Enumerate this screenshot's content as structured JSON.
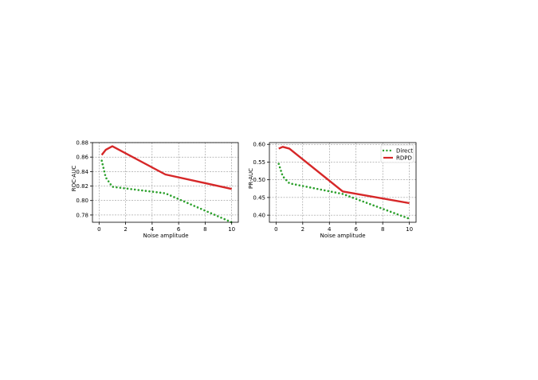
{
  "chart_data": [
    {
      "type": "line",
      "title": "",
      "xlabel": "Noise amplitude",
      "ylabel": "ROC-AUC",
      "xlim": [
        -0.5,
        10.5
      ],
      "ylim": [
        0.77,
        0.88
      ],
      "xticks": [
        0,
        2,
        4,
        6,
        8,
        10
      ],
      "yticks": [
        0.78,
        0.8,
        0.82,
        0.84,
        0.86,
        0.88
      ],
      "xtick_labels": [
        "0",
        "2",
        "4",
        "6",
        "8",
        "10"
      ],
      "ytick_labels": [
        "0.78",
        "0.80",
        "0.82",
        "0.84",
        "0.86",
        "0.88"
      ],
      "grid": true,
      "legend": null,
      "series": [
        {
          "name": "Direct",
          "color": "#2ca02c",
          "style": "dotted",
          "x": [
            0.2,
            0.5,
            1,
            5,
            10
          ],
          "y": [
            0.855,
            0.832,
            0.819,
            0.81,
            0.77
          ]
        },
        {
          "name": "RDPD",
          "color": "#d62728",
          "style": "solid",
          "x": [
            0.2,
            0.5,
            1,
            5,
            10
          ],
          "y": [
            0.863,
            0.87,
            0.875,
            0.836,
            0.816
          ]
        }
      ]
    },
    {
      "type": "line",
      "title": "",
      "xlabel": "Noise amplitude",
      "ylabel": "PR-AUC",
      "xlim": [
        -0.5,
        10.5
      ],
      "ylim": [
        0.38,
        0.605
      ],
      "xticks": [
        0,
        2,
        4,
        6,
        8,
        10
      ],
      "yticks": [
        0.4,
        0.45,
        0.5,
        0.55,
        0.6
      ],
      "xtick_labels": [
        "0",
        "2",
        "4",
        "6",
        "8",
        "10"
      ],
      "ytick_labels": [
        "0.40",
        "0.45",
        "0.50",
        "0.55",
        "0.60"
      ],
      "grid": true,
      "legend": {
        "position": "upper right",
        "entries": [
          "Direct",
          "RDPD"
        ]
      },
      "series": [
        {
          "name": "Direct",
          "color": "#2ca02c",
          "style": "dotted",
          "x": [
            0.2,
            0.5,
            1,
            5,
            10
          ],
          "y": [
            0.545,
            0.51,
            0.49,
            0.46,
            0.39
          ]
        },
        {
          "name": "RDPD",
          "color": "#d62728",
          "style": "solid",
          "x": [
            0.2,
            0.5,
            1,
            5,
            10
          ],
          "y": [
            0.588,
            0.593,
            0.588,
            0.467,
            0.434
          ]
        }
      ]
    }
  ]
}
